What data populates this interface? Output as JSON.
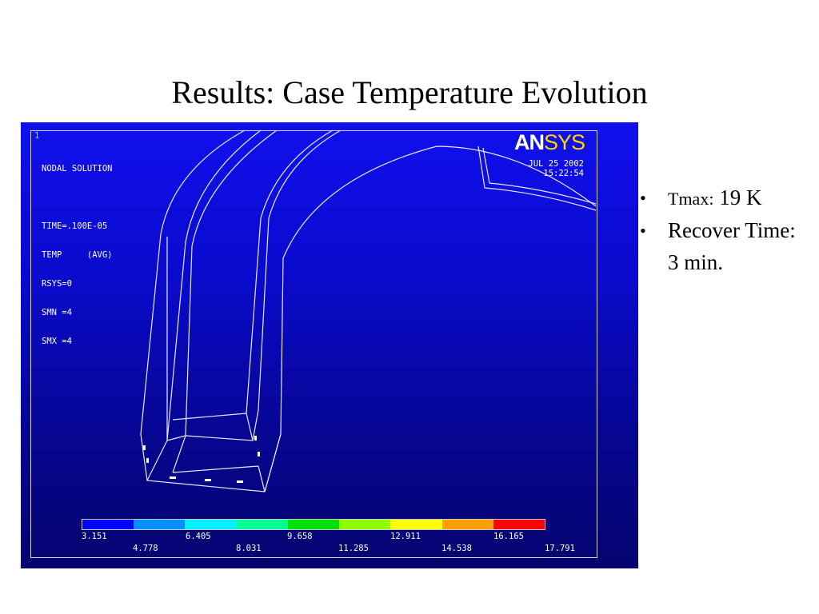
{
  "slide": {
    "title": "Results:  Case Temperature Evolution"
  },
  "figure": {
    "window_number": "1",
    "info_lines": [
      "NODAL SOLUTION",
      "",
      "TIME=.100E-05",
      "TEMP     (AVG)",
      "RSYS=0",
      "SMN =4",
      "SMX =4"
    ],
    "brand_an": "AN",
    "brand_sys": "SYS",
    "date": "JUL 25 2002",
    "time": "15:22:54",
    "legend": {
      "colors": [
        "#0000ff",
        "#0090ff",
        "#00f0ff",
        "#00ff90",
        "#00e000",
        "#90ff00",
        "#ffff00",
        "#ffa000",
        "#ff0000"
      ],
      "top_labels": [
        "3.151",
        "6.405",
        "9.658",
        "12.911",
        "16.165"
      ],
      "bottom_labels": [
        "4.778",
        "8.031",
        "11.285",
        "14.538",
        "17.791"
      ]
    }
  },
  "bullets": {
    "items": [
      {
        "label": "Tmax:",
        "value": "19 K"
      },
      {
        "label": "Recover Time:"
      }
    ],
    "sub": "3 min."
  }
}
